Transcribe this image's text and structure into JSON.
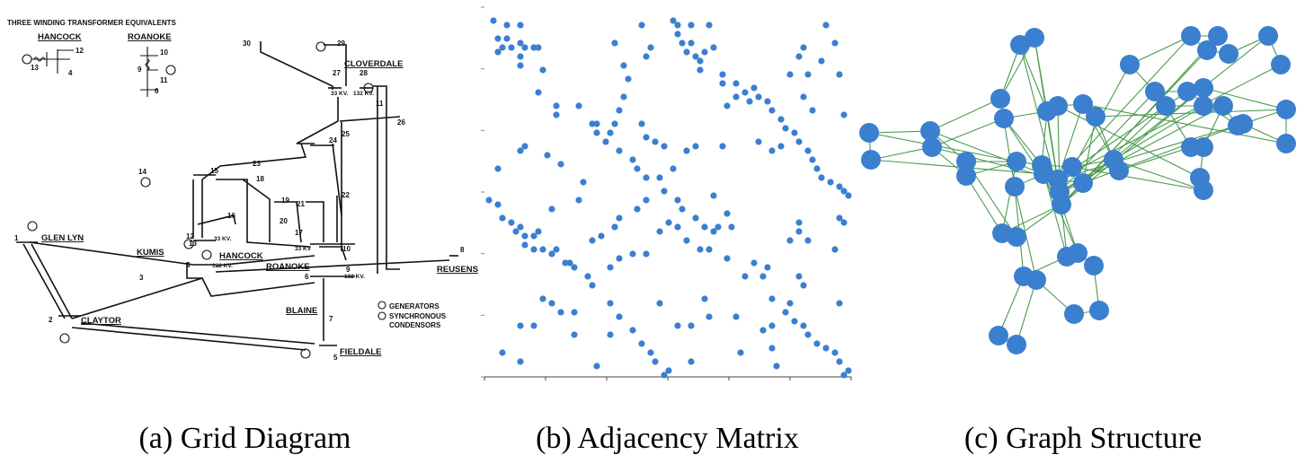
{
  "captions": {
    "a": "(a) Grid Diagram",
    "b": "(b) Adjacency Matrix",
    "c": "(c) Graph Structure"
  },
  "grid_diagram": {
    "legend_title": "THREE WINDING TRANSFORMER EQUIVALENTS",
    "eq_hancock": "HANCOCK",
    "eq_roanoke": "ROANOKE",
    "eq_hancock_nums": [
      "12",
      "13",
      "4"
    ],
    "eq_roanoke_nums": [
      "10",
      "9",
      "11",
      "6"
    ],
    "stations": {
      "cloverdale": "CLOVERDALE",
      "glen_lyn": "GLEN LYN",
      "kumis": "KUMIS",
      "hancock": "HANCOCK",
      "roanoke": "ROANOKE",
      "reusens": "REUSENS",
      "claytor": "CLAYTOR",
      "blaine": "BLAINE",
      "fieldale": "FIELDALE"
    },
    "voltages": {
      "v33_cloverdale": "33 KV.",
      "v132_cloverdale": "132 KV.",
      "v33_hancock": "33 KV.",
      "v132_hancock": "132 KV.",
      "v33_roanoke": "33 KV",
      "v132_roanoke": "132 KV."
    },
    "legend_generators": "GENERATORS",
    "legend_condensors_1": "SYNCHRONOUS",
    "legend_condensors_2": "CONDENSORS",
    "bus_numbers": [
      "1",
      "2",
      "3",
      "4",
      "5",
      "6",
      "7",
      "8",
      "9",
      "10",
      "11",
      "12",
      "13",
      "14",
      "15",
      "16",
      "17",
      "18",
      "19",
      "20",
      "21",
      "22",
      "23",
      "24",
      "25",
      "26",
      "27",
      "28",
      "29",
      "30"
    ]
  },
  "adjacency_matrix": {
    "dot_color": "#3b7fcf",
    "size": 30
  },
  "graph_structure": {
    "node_color": "#3b7fcf",
    "edge_color": "#4a9a4e"
  }
}
